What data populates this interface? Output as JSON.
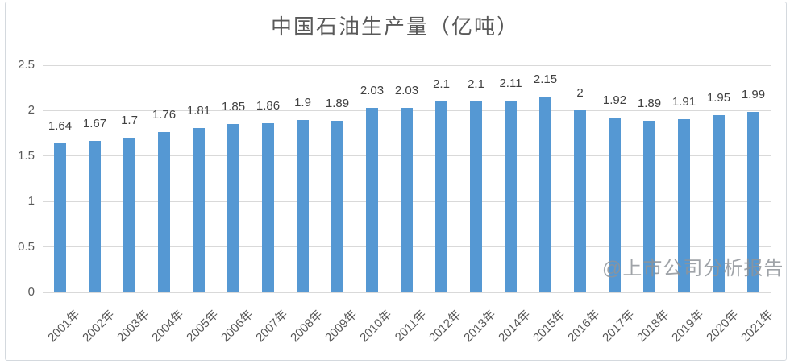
{
  "title": "中国石油生产量（亿吨）",
  "watermark": "@上市公司分析报告",
  "colors": {
    "bar": "#5598d3",
    "gridline": "#d9d9d9",
    "title": "#595959",
    "axis_label": "#595959",
    "data_label": "#404040",
    "watermark": "#8f9499"
  },
  "chart_data": {
    "type": "bar",
    "title": "中国石油生产量（亿吨）",
    "categories": [
      "2001年",
      "2002年",
      "2003年",
      "2004年",
      "2005年",
      "2006年",
      "2007年",
      "2008年",
      "2009年",
      "2010年",
      "2011年",
      "2012年",
      "2013年",
      "2014年",
      "2015年",
      "2016年",
      "2017年",
      "2018年",
      "2019年",
      "2020年",
      "2021年"
    ],
    "values": [
      1.64,
      1.67,
      1.7,
      1.76,
      1.81,
      1.85,
      1.86,
      1.9,
      1.89,
      2.03,
      2.03,
      2.1,
      2.1,
      2.11,
      2.15,
      2,
      1.92,
      1.89,
      1.91,
      1.95,
      1.99
    ],
    "data_labels": [
      "1.64",
      "1.67",
      "1.7",
      "1.76",
      "1.81",
      "1.85",
      "1.86",
      "1.9",
      "1.89",
      "2.03",
      "2.03",
      "2.1",
      "2.1",
      "2.11",
      "2.15",
      "2",
      "1.92",
      "1.89",
      "1.91",
      "1.95",
      "1.99"
    ],
    "xlabel": "",
    "ylabel": "",
    "ylim": [
      0,
      2.5
    ],
    "yticks": [
      0,
      0.5,
      1,
      1.5,
      2,
      2.5
    ],
    "ytick_labels": [
      "0",
      "0.5",
      "1",
      "1.5",
      "2",
      "2.5"
    ],
    "grid": true,
    "legend": false
  }
}
